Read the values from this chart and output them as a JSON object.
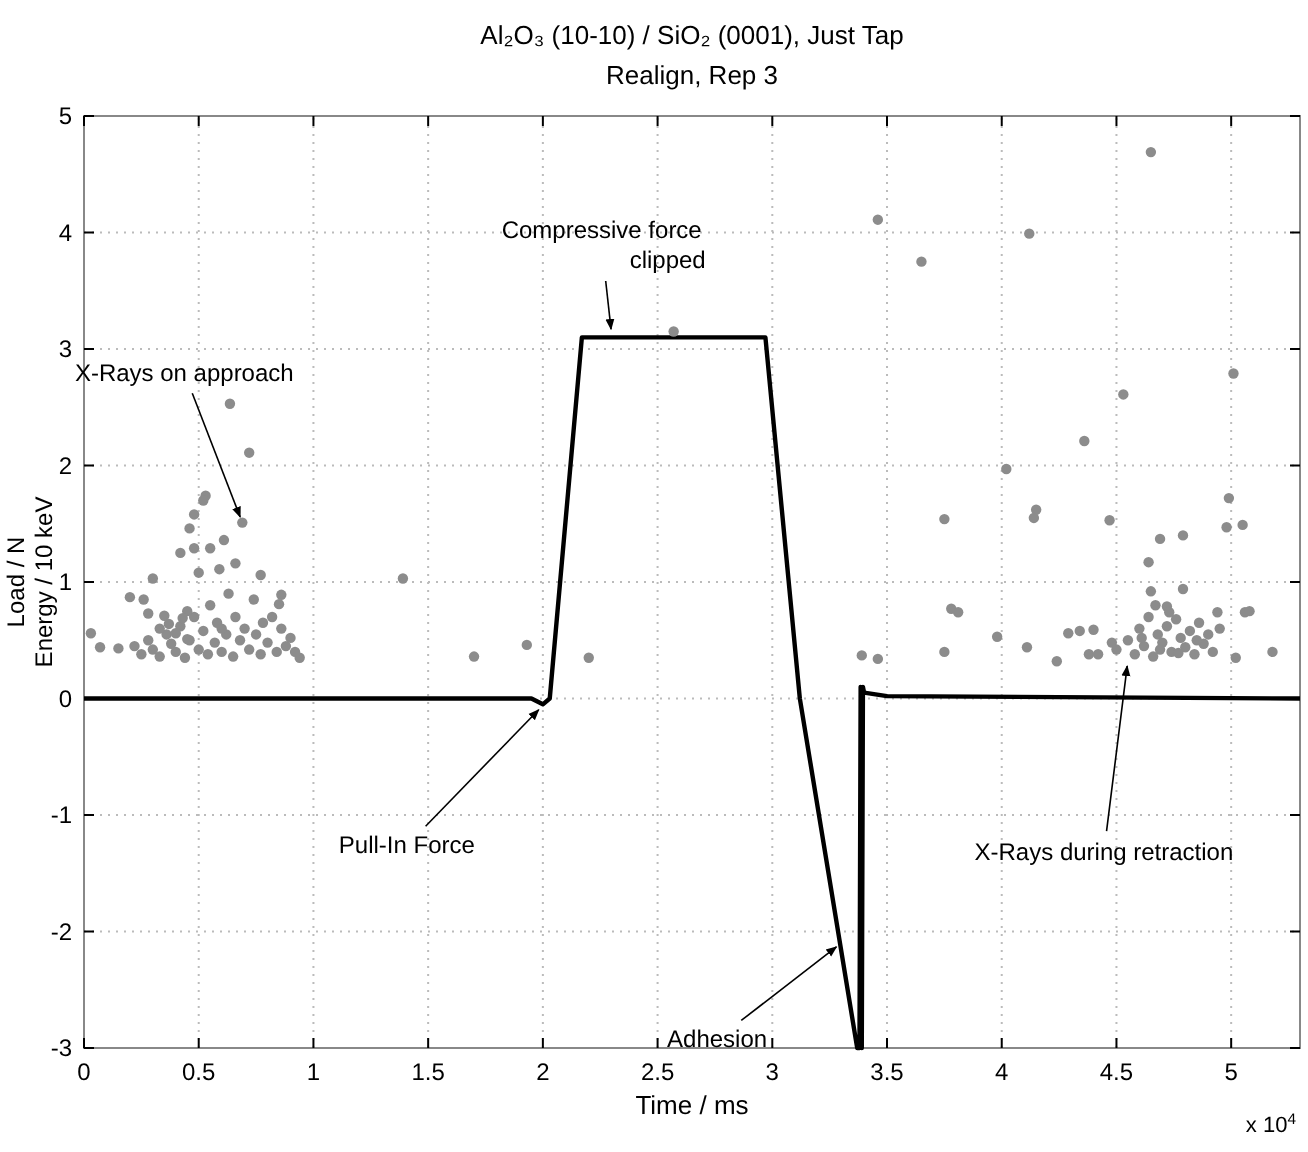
{
  "chart_data": {
    "type": "line",
    "title": "Al₂O₃ (10-10) / SiO₂ (0001), Just Tap",
    "subtitle": "Realign, Rep 3",
    "xlabel": "Time / ms",
    "ylabel": "Load / N\nEnergy / 10 keV",
    "xlim": [
      0,
      5.3
    ],
    "ylim": [
      -3,
      5
    ],
    "xticks": [
      0,
      0.5,
      1,
      1.5,
      2,
      2.5,
      3,
      3.5,
      4,
      4.5,
      5
    ],
    "yticks": [
      -3,
      -2,
      -1,
      0,
      1,
      2,
      3,
      4,
      5
    ],
    "grid": true,
    "series": [
      {
        "color": "#000000",
        "x": [
          0,
          1.95,
          2,
          2.03,
          2.17,
          2.97,
          3.12,
          3.37,
          3.38,
          3.385,
          3.39,
          3.395,
          3.4,
          3.5,
          5.3
        ],
        "values": [
          0,
          0,
          -0.05,
          0,
          3.1,
          3.1,
          0,
          -3,
          -3,
          0.1,
          -3,
          0.1,
          0.05,
          0.02,
          0
        ]
      },
      {
        "type": "scatter",
        "color": "#8c8c8c",
        "marker": "circle",
        "x": [
          0.636,
          0.72,
          0.53,
          0.52,
          0.69,
          0.48,
          0.46,
          0.61,
          0.42,
          0.48,
          0.55,
          0.3,
          0.5,
          0.59,
          0.66,
          0.77,
          1.39,
          0.03,
          0.07,
          0.15,
          0.2,
          0.26,
          0.28,
          0.35,
          0.86,
          0.85,
          0.94,
          1.7,
          1.93,
          2.2,
          2.57,
          0.22,
          0.25,
          0.28,
          0.3,
          0.33,
          0.36,
          0.38,
          0.4,
          0.42,
          0.44,
          0.46,
          0.48,
          0.5,
          0.52,
          0.54,
          0.55,
          0.57,
          0.58,
          0.6,
          0.62,
          0.63,
          0.65,
          0.66,
          0.68,
          0.7,
          0.72,
          0.74,
          0.75,
          0.77,
          0.78,
          0.8,
          0.82,
          0.84,
          0.86,
          0.88,
          0.9,
          0.92,
          0.4,
          0.6,
          0.45,
          0.33,
          0.45,
          0.37,
          0.43,
          4.65,
          3.46,
          4.12,
          3.65,
          5.01,
          4.53,
          4.36,
          4.02,
          4.99,
          3.75,
          4.15,
          4.14,
          4.47,
          4.98,
          5.05,
          4.69,
          4.79,
          4.64,
          4.65,
          4.79,
          3.78,
          3.81,
          4.72,
          4.94,
          5.06,
          5.08,
          3.98,
          4.29,
          4.34,
          4.4,
          3.39,
          3.46,
          3.75,
          4.11,
          4.24,
          4.38,
          4.42,
          4.48,
          5.18,
          5.02,
          4.5,
          4.55,
          4.58,
          4.6,
          4.62,
          4.64,
          4.66,
          4.68,
          4.7,
          4.72,
          4.74,
          4.76,
          4.78,
          4.8,
          4.82,
          4.84,
          4.86,
          4.88,
          4.9,
          4.92,
          4.95,
          4.67,
          4.73,
          4.61,
          4.69,
          4.77,
          4.85
        ],
        "values": [
          2.53,
          2.11,
          1.74,
          1.7,
          1.51,
          1.58,
          1.46,
          1.36,
          1.25,
          1.29,
          1.29,
          1.03,
          1.08,
          1.11,
          1.16,
          1.06,
          1.03,
          0.56,
          0.44,
          0.43,
          0.87,
          0.85,
          0.73,
          0.71,
          0.89,
          0.81,
          0.35,
          0.36,
          0.46,
          0.35,
          3.15,
          0.45,
          0.38,
          0.5,
          0.42,
          0.36,
          0.55,
          0.47,
          0.4,
          0.62,
          0.35,
          0.5,
          0.7,
          0.42,
          0.58,
          0.38,
          0.8,
          0.48,
          0.65,
          0.4,
          0.55,
          0.9,
          0.36,
          0.7,
          0.5,
          0.6,
          0.42,
          0.85,
          0.55,
          0.38,
          0.65,
          0.48,
          0.7,
          0.4,
          0.6,
          0.45,
          0.52,
          0.4,
          0.56,
          0.6,
          0.75,
          0.6,
          0.51,
          0.64,
          0.69,
          4.69,
          4.11,
          3.99,
          3.75,
          2.79,
          2.61,
          2.21,
          1.97,
          1.72,
          1.54,
          1.62,
          1.55,
          1.53,
          1.47,
          1.49,
          1.37,
          1.4,
          1.17,
          0.92,
          0.94,
          0.77,
          0.74,
          0.79,
          0.74,
          0.74,
          0.75,
          0.53,
          0.56,
          0.58,
          0.59,
          0.37,
          0.34,
          0.4,
          0.44,
          0.32,
          0.38,
          0.38,
          0.48,
          0.4,
          0.35,
          0.42,
          0.5,
          0.38,
          0.6,
          0.45,
          0.7,
          0.36,
          0.55,
          0.48,
          0.62,
          0.4,
          0.68,
          0.52,
          0.44,
          0.58,
          0.38,
          0.65,
          0.47,
          0.55,
          0.4,
          0.6,
          0.8,
          0.74,
          0.52,
          0.42,
          0.39,
          0.5
        ]
      }
    ],
    "annotations": [
      {
        "text": "X-Rays on approach",
        "x": 0.69,
        "y": 1.51
      },
      {
        "text": "Compressive force\nclipped",
        "x": 2.3,
        "y": 3.12
      },
      {
        "text": "Pull-In Force",
        "x": 2.0,
        "y": -0.06
      },
      {
        "text": "Adhesion",
        "x": 3.3,
        "y": -2.1
      },
      {
        "text": "X-Rays during retraction",
        "x": 4.55,
        "y": 0.33
      },
      "x 10$^{4}$"
    ]
  }
}
